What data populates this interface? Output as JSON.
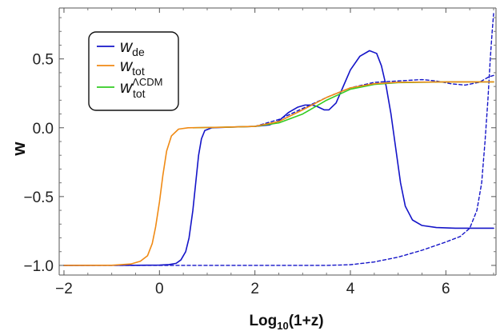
{
  "chart_data": {
    "type": "line",
    "xlabel": {
      "base": "Log",
      "sub": "10",
      "rest": "(1+z)"
    },
    "ylabel": "w",
    "xlim": [
      -2.1,
      7.05
    ],
    "ylim": [
      -1.07,
      0.87
    ],
    "xticks": [
      -2,
      0,
      2,
      4,
      6
    ],
    "yticks": [
      -1.0,
      -0.5,
      0.0,
      0.5
    ],
    "xtick_labels": [
      "−2",
      "0",
      "2",
      "4",
      "6"
    ],
    "ytick_labels": [
      "−1.0",
      "−0.5",
      "0.0",
      "0.5"
    ],
    "legend_position": "top-left",
    "series": [
      {
        "name": {
          "base": "w",
          "sub": "de",
          "sup": ""
        },
        "color": "#1414c8",
        "style": "solid",
        "points": [
          [
            -2,
            -1
          ],
          [
            -0.5,
            -0.999
          ],
          [
            0,
            -0.998
          ],
          [
            0.2,
            -0.994
          ],
          [
            0.35,
            -0.985
          ],
          [
            0.45,
            -0.96
          ],
          [
            0.55,
            -0.9
          ],
          [
            0.62,
            -0.8
          ],
          [
            0.7,
            -0.6
          ],
          [
            0.76,
            -0.4
          ],
          [
            0.82,
            -0.2
          ],
          [
            0.88,
            -0.08
          ],
          [
            0.95,
            -0.02
          ],
          [
            1.1,
            0.0
          ],
          [
            1.5,
            0.005
          ],
          [
            2,
            0.01
          ],
          [
            2.3,
            0.02
          ],
          [
            2.5,
            0.05
          ],
          [
            2.7,
            0.11
          ],
          [
            2.9,
            0.15
          ],
          [
            3.05,
            0.165
          ],
          [
            3.2,
            0.165
          ],
          [
            3.3,
            0.155
          ],
          [
            3.45,
            0.13
          ],
          [
            3.55,
            0.13
          ],
          [
            3.7,
            0.18
          ],
          [
            3.85,
            0.3
          ],
          [
            4.0,
            0.42
          ],
          [
            4.2,
            0.52
          ],
          [
            4.4,
            0.56
          ],
          [
            4.55,
            0.54
          ],
          [
            4.65,
            0.45
          ],
          [
            4.75,
            0.3
          ],
          [
            4.85,
            0.1
          ],
          [
            4.95,
            -0.15
          ],
          [
            5.05,
            -0.4
          ],
          [
            5.15,
            -0.57
          ],
          [
            5.3,
            -0.67
          ],
          [
            5.5,
            -0.71
          ],
          [
            5.8,
            -0.725
          ],
          [
            6.2,
            -0.73
          ],
          [
            7.0,
            -0.73
          ]
        ]
      },
      {
        "name": {
          "base": "w",
          "sub": "tot",
          "sup": ""
        },
        "color": "#f08a14",
        "style": "solid",
        "points": [
          [
            -2,
            -1
          ],
          [
            -1,
            -0.999
          ],
          [
            -0.6,
            -0.99
          ],
          [
            -0.4,
            -0.97
          ],
          [
            -0.25,
            -0.93
          ],
          [
            -0.15,
            -0.84
          ],
          [
            -0.08,
            -0.72
          ],
          [
            0,
            -0.54
          ],
          [
            0.07,
            -0.35
          ],
          [
            0.15,
            -0.17
          ],
          [
            0.25,
            -0.06
          ],
          [
            0.4,
            -0.01
          ],
          [
            0.6,
            0.0
          ],
          [
            1.2,
            0.003
          ],
          [
            2,
            0.01
          ],
          [
            2.5,
            0.045
          ],
          [
            3,
            0.13
          ],
          [
            3.5,
            0.22
          ],
          [
            4,
            0.29
          ],
          [
            4.5,
            0.32
          ],
          [
            5,
            0.33
          ],
          [
            6,
            0.333
          ],
          [
            7,
            0.333
          ]
        ]
      },
      {
        "name": {
          "base": "w",
          "sub": "tot",
          "sup": "ΛCDM"
        },
        "color": "#33cc22",
        "style": "solid",
        "points": [
          [
            0.7,
            0.0
          ],
          [
            1.5,
            0.005
          ],
          [
            2,
            0.01
          ],
          [
            2.5,
            0.035
          ],
          [
            3,
            0.1
          ],
          [
            3.5,
            0.2
          ],
          [
            4,
            0.28
          ],
          [
            4.5,
            0.315
          ],
          [
            5,
            0.328
          ],
          [
            6,
            0.333
          ],
          [
            7,
            0.333
          ]
        ]
      },
      {
        "name": null,
        "color": "#1414c8",
        "style": "dashed",
        "points": [
          [
            -2,
            -1
          ],
          [
            0,
            -1
          ],
          [
            1,
            -1
          ],
          [
            2,
            -1
          ],
          [
            3,
            -1
          ],
          [
            3.5,
            -1
          ],
          [
            4,
            -0.995
          ],
          [
            4.5,
            -0.975
          ],
          [
            5,
            -0.94
          ],
          [
            5.5,
            -0.89
          ],
          [
            6,
            -0.83
          ],
          [
            6.3,
            -0.79
          ],
          [
            6.5,
            -0.73
          ],
          [
            6.65,
            -0.6
          ],
          [
            6.75,
            -0.4
          ],
          [
            6.82,
            -0.1
          ],
          [
            6.88,
            0.2
          ],
          [
            6.93,
            0.5
          ],
          [
            6.97,
            0.7
          ],
          [
            7.0,
            0.83
          ]
        ]
      },
      {
        "name": null,
        "color": "#1414c8",
        "style": "dashed",
        "points": [
          [
            2,
            0.01
          ],
          [
            2.5,
            0.06
          ],
          [
            3,
            0.14
          ],
          [
            3.5,
            0.22
          ],
          [
            4,
            0.29
          ],
          [
            4.5,
            0.33
          ],
          [
            5,
            0.34
          ],
          [
            5.5,
            0.35
          ],
          [
            5.8,
            0.34
          ],
          [
            6.1,
            0.32
          ],
          [
            6.4,
            0.31
          ],
          [
            6.7,
            0.33
          ],
          [
            6.9,
            0.37
          ],
          [
            7.0,
            0.38
          ]
        ]
      }
    ]
  }
}
